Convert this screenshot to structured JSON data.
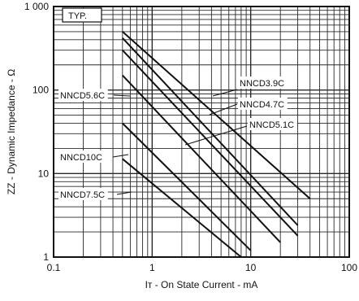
{
  "chart_data": {
    "type": "line",
    "title": "",
    "badge": "TYP.",
    "xlabel": "Iт -  On State Current  - mA",
    "ylabel": "ZΖ - Dynamic Impedance - Ω",
    "x_scale": "log",
    "y_scale": "log",
    "xlim": [
      0.1,
      100
    ],
    "ylim": [
      1,
      1000
    ],
    "x_ticks": [
      "0.1",
      "1",
      "10",
      "100"
    ],
    "y_ticks": [
      "1",
      "10",
      "100",
      "1 000"
    ],
    "grid": true,
    "series": [
      {
        "name": "NNCD3.9C",
        "x": [
          0.5,
          40
        ],
        "y": [
          500,
          5
        ]
      },
      {
        "name": "NNCD4.7C",
        "x": [
          0.5,
          30
        ],
        "y": [
          420,
          2.4
        ]
      },
      {
        "name": "NNCD5.1C",
        "x": [
          0.5,
          30
        ],
        "y": [
          300,
          1.8
        ]
      },
      {
        "name": "NNCD5.6C",
        "x": [
          0.5,
          20
        ],
        "y": [
          150,
          1.5
        ]
      },
      {
        "name": "NNCD10C",
        "x": [
          0.5,
          10
        ],
        "y": [
          40,
          1.2
        ]
      },
      {
        "name": "NNCD7.5C",
        "x": [
          0.5,
          8
        ],
        "y": [
          15,
          1.0
        ]
      }
    ]
  },
  "colors": {
    "line": "#111111",
    "grid": "#2a2a2a",
    "background": "#ffffff"
  }
}
